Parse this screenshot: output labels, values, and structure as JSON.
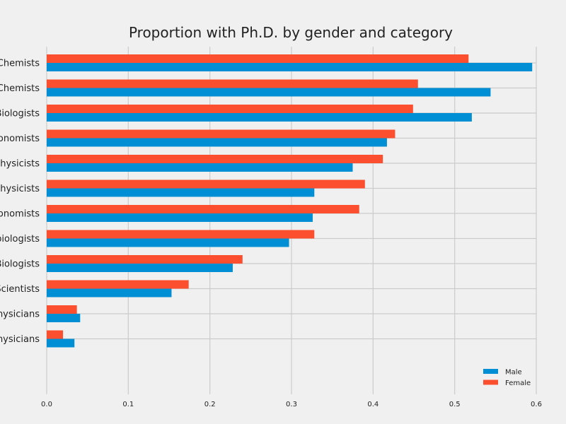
{
  "chart_data": {
    "type": "bar",
    "orientation": "horizontal",
    "title": "Proportion with Ph.D. by gender and category",
    "xlabel": "",
    "ylabel": "",
    "xlim": [
      0,
      0.6
    ],
    "x_ticks": [
      "0.0",
      "0.1",
      "0.2",
      "0.3",
      "0.4",
      "0.5",
      "0.6"
    ],
    "grid": true,
    "legend_position": "bottom-right",
    "categories_visible": [
      "Chemists",
      "Chemists",
      "Biologists",
      "onomists",
      "Physicists",
      "Physicists",
      "onomists",
      "biologists",
      "Biologists",
      "Scientists",
      "hysicians",
      "hysicians"
    ],
    "series": [
      {
        "name": "Female",
        "color": "#fc4f30",
        "values": [
          0.517,
          0.455,
          0.449,
          0.427,
          0.412,
          0.39,
          0.383,
          0.328,
          0.24,
          0.174,
          0.037,
          0.02
        ]
      },
      {
        "name": "Male",
        "color": "#008fd5",
        "values": [
          0.595,
          0.544,
          0.521,
          0.417,
          0.375,
          0.328,
          0.326,
          0.297,
          0.228,
          0.153,
          0.041,
          0.034
        ]
      }
    ],
    "legend": [
      {
        "name": "Male",
        "color": "#008fd5"
      },
      {
        "name": "Female",
        "color": "#fc4f30"
      }
    ]
  }
}
